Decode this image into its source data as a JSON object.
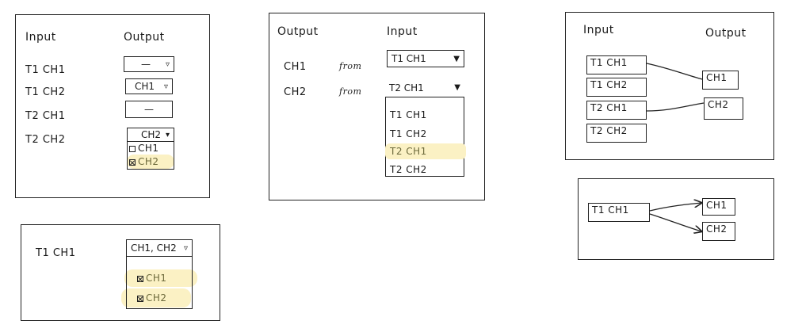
{
  "panel_a": {
    "input_header": "Input",
    "output_header": "Output",
    "rows": [
      {
        "input": "T1  CH1",
        "output": "—",
        "caret": "▿"
      },
      {
        "input": "T1  CH2",
        "output": "CH1",
        "caret": "▿"
      },
      {
        "input": "T2  CH1",
        "output": "—"
      },
      {
        "input": "T2  CH2",
        "output": "CH2",
        "caret": "▾"
      }
    ],
    "options": [
      {
        "label": "CH1",
        "checked": false
      },
      {
        "label": "CH2",
        "checked": true
      }
    ]
  },
  "panel_b": {
    "input": "T1  CH1",
    "output": "CH1, CH2",
    "caret": "▿",
    "options": [
      {
        "label": "CH1",
        "checked": true
      },
      {
        "label": "CH2",
        "checked": true
      }
    ]
  },
  "panel_c": {
    "output_header": "Output",
    "input_header": "Input",
    "from_label": "from",
    "rows": [
      {
        "output": "CH1",
        "selected": "T1  CH1",
        "caret": "▼"
      },
      {
        "output": "CH2",
        "selected": "T2  CH1",
        "caret": "▼"
      }
    ],
    "list": [
      "T1  CH1",
      "T1  CH2",
      "T2  CH1",
      "T2  CH2"
    ]
  },
  "panel_d": {
    "input_header": "Input",
    "output_header": "Output",
    "inputs": [
      "T1  CH1",
      "T1  CH2",
      "T2  CH1",
      "T2  CH2"
    ],
    "outputs": [
      "CH1",
      "CH2"
    ]
  },
  "panel_e": {
    "input": "T1  CH1",
    "outputs": [
      "CH1",
      "CH2"
    ]
  }
}
